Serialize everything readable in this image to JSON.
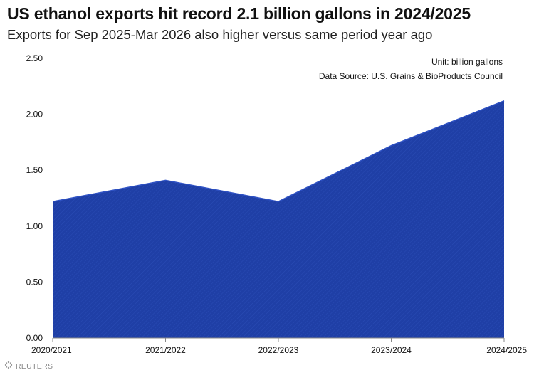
{
  "chart_data": {
    "type": "area",
    "title": "US ethanol exports hit record 2.1 billion gallons in 2024/2025",
    "subtitle": "Exports for Sep 2025-Mar 2026 also higher versus same period year ago",
    "categories": [
      "2020/2021",
      "2021/2022",
      "2022/2023",
      "2023/2024",
      "2024/2025"
    ],
    "values": [
      1.22,
      1.41,
      1.22,
      1.72,
      2.12
    ],
    "ylim": [
      0,
      2.5
    ],
    "yticks": [
      "0.00",
      "0.50",
      "1.00",
      "1.50",
      "2.00",
      "2.50"
    ],
    "unit_note": "Unit: billion gallons",
    "source_note": "Data Source: U.S. Grains & BioProducts Council",
    "grid": false,
    "color": "#1f3fa6"
  },
  "branding": {
    "logo_text": "REUTERS"
  }
}
